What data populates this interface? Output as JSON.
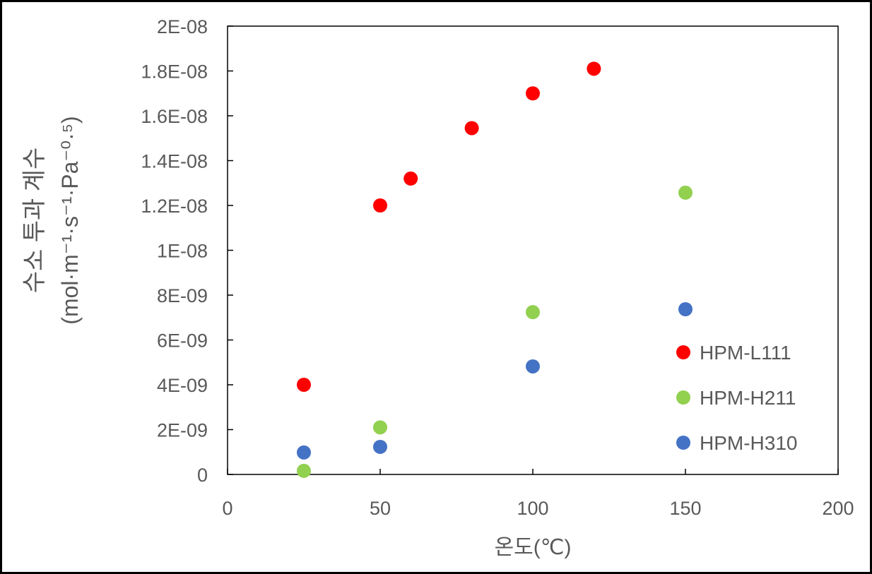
{
  "chart_data": {
    "type": "scatter",
    "title": "",
    "xlabel": "온도(℃)",
    "ylabel_line1": "수소 투과 계수",
    "ylabel_line2": "(mol·m⁻¹·s⁻¹·Pa⁻⁰·⁵)",
    "xlim": [
      0,
      200
    ],
    "ylim": [
      0,
      2e-08
    ],
    "x_ticks": [
      0,
      50,
      100,
      150,
      200
    ],
    "x_tick_labels": [
      "0",
      "50",
      "100",
      "150",
      "200"
    ],
    "y_ticks": [
      0,
      2e-09,
      4e-09,
      6e-09,
      8e-09,
      1e-08,
      1.2e-08,
      1.4e-08,
      1.6e-08,
      1.8e-08,
      2e-08
    ],
    "y_tick_labels": [
      "0",
      "2E-09",
      "4E-09",
      "6E-09",
      "8E-09",
      "1E-08",
      "1.2E-08",
      "1.4E-08",
      "1.6E-08",
      "1.8E-08",
      "2E-08"
    ],
    "grid": false,
    "legend_position": "bottom-right",
    "series": [
      {
        "name": "HPM-L111",
        "color": "#ff0000",
        "x": [
          25,
          50,
          60,
          80,
          100,
          120
        ],
        "y": [
          4e-09,
          1.2e-08,
          1.32e-08,
          1.545e-08,
          1.7e-08,
          1.81e-08
        ]
      },
      {
        "name": "HPM-H211",
        "color": "#92d050",
        "x": [
          25,
          50,
          100,
          150
        ],
        "y": [
          1.6e-10,
          2.1e-09,
          7.24e-09,
          1.257e-08
        ]
      },
      {
        "name": "HPM-H310",
        "color": "#4472c4",
        "x": [
          25,
          50,
          100,
          150
        ],
        "y": [
          9.8e-10,
          1.23e-09,
          4.82e-09,
          7.37e-09
        ]
      }
    ]
  }
}
